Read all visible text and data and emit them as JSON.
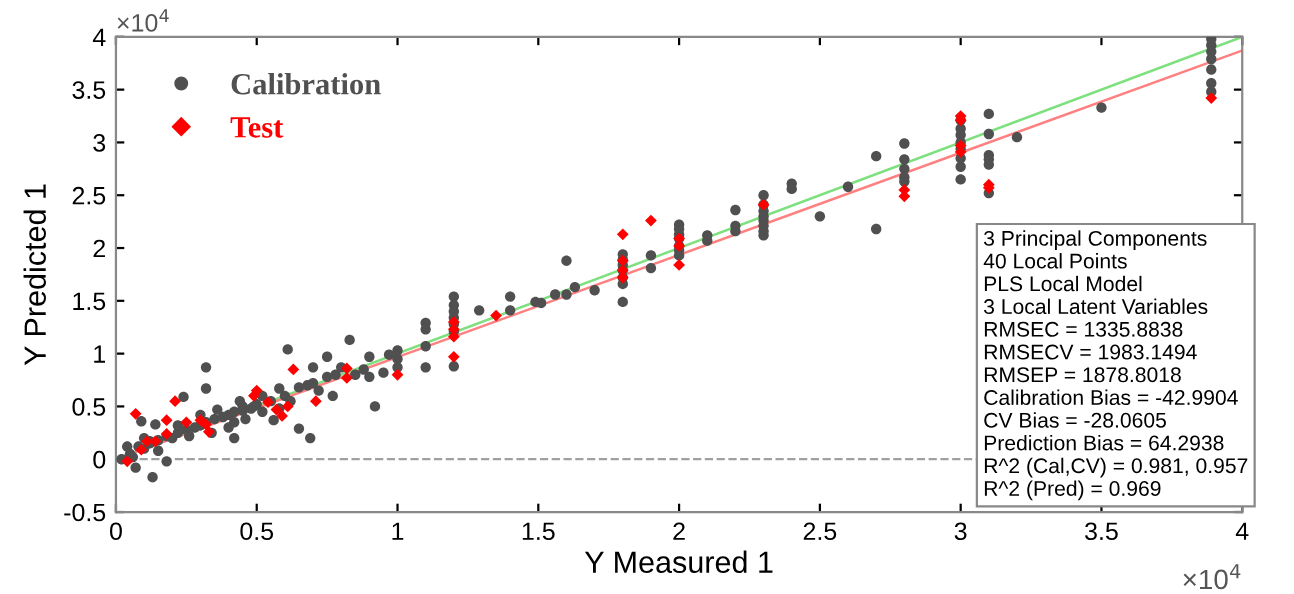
{
  "chart_data": {
    "type": "scatter",
    "xlabel": "Y Measured 1",
    "ylabel": "Y Predicted 1",
    "xlim": [
      0,
      4
    ],
    "ylim": [
      -0.5,
      4
    ],
    "xticks": [
      0,
      0.5,
      1,
      1.5,
      2,
      2.5,
      3,
      3.5,
      4
    ],
    "yticks": [
      -0.5,
      0,
      0.5,
      1,
      1.5,
      2,
      2.5,
      3,
      3.5,
      4
    ],
    "grid": false,
    "legend": "top left",
    "ref_lines": [
      {
        "axis": "y",
        "value": 0,
        "color": "#a0a0a0",
        "line_style": "dashed"
      }
    ],
    "annotations": [
      "×10$^{4}$",
      "×10$^{4}$",
      "3 Principal Components\n40 Local Points\nPLS Local Model\n3 Local Latent Variables\nRMSEC = 1335.8838\nRMSECV = 1983.1494\nRMSEP = 1878.8018\nCalibration Bias = -42.9904\nCV Bias = -28.0605\nPrediction Bias = 64.2938\nR^2 (Cal,CV) = 0.981, 0.957\nR^2 (Pred) = 0.969"
    ],
    "series": [
      {
        "type": "line",
        "color": "#7fe07f",
        "marker": "none",
        "x": [
          0,
          4
        ],
        "values": [
          0,
          4
        ]
      },
      {
        "type": "line",
        "color": "#ff8080",
        "marker": "none",
        "x": [
          0,
          4
        ],
        "values": [
          0,
          3.87
        ]
      },
      {
        "name": "Calibration",
        "color": "#505050",
        "marker": "circle",
        "x": [
          0.05,
          0.08,
          0.1,
          0.12,
          0.15,
          0.18,
          0.2,
          0.22,
          0.25,
          0.28,
          0.3,
          0.32,
          0.35,
          0.38,
          0.4,
          0.42,
          0.45,
          0.48,
          0.5,
          0.55,
          0.6,
          0.62,
          0.65,
          0.7,
          0.72,
          0.75,
          0.78,
          0.85,
          0.88,
          0.9,
          0.95,
          0.3,
          0.36,
          0.4,
          0.26,
          0.15,
          0.02,
          0.04,
          0.06,
          0.1,
          0.22,
          0.34,
          0.46,
          0.52,
          0.58,
          0.44,
          0.83,
          0.9,
          0.97,
          0.92,
          0.75,
          0.68,
          0.61,
          0.7,
          0.8,
          0.77,
          0.65,
          0.69,
          0.56,
          0.58,
          0.52,
          0.49,
          0.45,
          0.42,
          0.42,
          0.32,
          0.32,
          0.24,
          0.18,
          0.13,
          0.07,
          0.09,
          0.14,
          0.12,
          1,
          1,
          1,
          1.1,
          1.1,
          1.1,
          1.1,
          1.2,
          1.2,
          1.2,
          1.2,
          1.2,
          1.2,
          1.2,
          1.29,
          1.4,
          1.4,
          1.49,
          1.56,
          1.6,
          1.6,
          1.63,
          1.7,
          1.51,
          1.8,
          1.8,
          1.8,
          1.8,
          1.8,
          1.8,
          1.8,
          1.9,
          1.9,
          2,
          2,
          2,
          2,
          2,
          2,
          2,
          2.1,
          2.1,
          2.2,
          2.2,
          2.2,
          2.3,
          2.3,
          2.3,
          2.3,
          2.3,
          2.3,
          2.3,
          2.3,
          2.4,
          2.4,
          2.5,
          2.6,
          2.7,
          2.7,
          2.8,
          2.8,
          2.8,
          2.8,
          2.8,
          3,
          3,
          3,
          3,
          3,
          3,
          3,
          3,
          3.1,
          3.1,
          3.1,
          3.1,
          3.1,
          3.1,
          3.2,
          3.5,
          3.89,
          3.89,
          3.89,
          3.89,
          3.89,
          3.89,
          3.89
        ],
        "values": [
          0.05,
          0.12,
          0.1,
          0.15,
          0.18,
          0.22,
          0.2,
          0.25,
          0.28,
          0.3,
          0.32,
          0.35,
          0.38,
          0.4,
          0.42,
          0.45,
          0.5,
          0.48,
          0.52,
          0.55,
          0.6,
          0.55,
          0.68,
          0.72,
          0.65,
          0.78,
          0.8,
          0.8,
          0.85,
          0.78,
          0.82,
          0.42,
          0.47,
          0.3,
          0.22,
          0.08,
          0,
          0.12,
          0.02,
          0.2,
          0.32,
          0.25,
          0.38,
          0.45,
          0.48,
          0.55,
          1.13,
          0.97,
          0.99,
          0.5,
          0.97,
          0.7,
          1.04,
          0.87,
          0.87,
          0.6,
          0.29,
          0.2,
          0.37,
          0.67,
          0.6,
          0.5,
          0.46,
          0.35,
          0.2,
          0.87,
          0.67,
          0.59,
          -0.02,
          -0.17,
          -0.08,
          0.36,
          0.33,
          0.17,
          1.03,
          0.95,
          0.87,
          1.29,
          1.23,
          1.07,
          0.87,
          1.54,
          1.46,
          1.4,
          1.34,
          1.28,
          1.21,
          0.88,
          1.41,
          1.54,
          1.41,
          1.49,
          1.56,
          1.88,
          1.56,
          1.63,
          1.6,
          1.48,
          1.94,
          1.89,
          1.84,
          1.79,
          1.72,
          1.66,
          1.49,
          1.93,
          1.81,
          2.22,
          2.18,
          2.13,
          2.09,
          2.02,
          1.98,
          1.93,
          2.12,
          2.07,
          2.36,
          2.21,
          2.16,
          2.5,
          2.41,
          2.35,
          2.3,
          2.26,
          2.21,
          2.16,
          2.12,
          2.61,
          2.56,
          2.3,
          2.58,
          2.87,
          2.18,
          2.99,
          2.84,
          2.75,
          2.67,
          2.63,
          3.21,
          3.13,
          3.07,
          3,
          2.94,
          2.85,
          2.77,
          2.65,
          3.27,
          3.08,
          2.88,
          2.84,
          2.79,
          2.52,
          3.05,
          3.33,
          3.98,
          3.92,
          3.86,
          3.79,
          3.69,
          3.56,
          3.48
        ]
      },
      {
        "name": "Test",
        "color": "#ff0000",
        "marker": "diamond",
        "x": [
          0.21,
          0.07,
          0.18,
          0.18,
          0.11,
          0.14,
          0.09,
          0.04,
          0.25,
          0.3,
          0.32,
          0.33,
          0.49,
          0.5,
          0.54,
          0.57,
          0.59,
          0.61,
          0.63,
          0.71,
          0.82,
          0.82,
          1,
          1.2,
          1.2,
          1.2,
          1.2,
          1.35,
          1.8,
          1.8,
          1.8,
          1.8,
          1.9,
          2,
          2,
          2,
          2.3,
          2.8,
          2.8,
          3,
          3,
          3,
          3,
          3.1,
          3.1,
          3.89
        ],
        "values": [
          0.55,
          0.43,
          0.37,
          0.24,
          0.17,
          0.17,
          0.09,
          -0.02,
          0.35,
          0.37,
          0.33,
          0.26,
          0.6,
          0.65,
          0.54,
          0.47,
          0.41,
          0.5,
          0.85,
          0.55,
          0.86,
          0.77,
          0.8,
          1.3,
          1.23,
          1.16,
          0.97,
          1.36,
          2.13,
          1.88,
          1.79,
          1.72,
          2.26,
          2.09,
          2.02,
          1.84,
          2.41,
          2.55,
          2.49,
          3.25,
          3.21,
          2.97,
          2.91,
          2.6,
          2.57,
          3.42
        ]
      }
    ]
  }
}
